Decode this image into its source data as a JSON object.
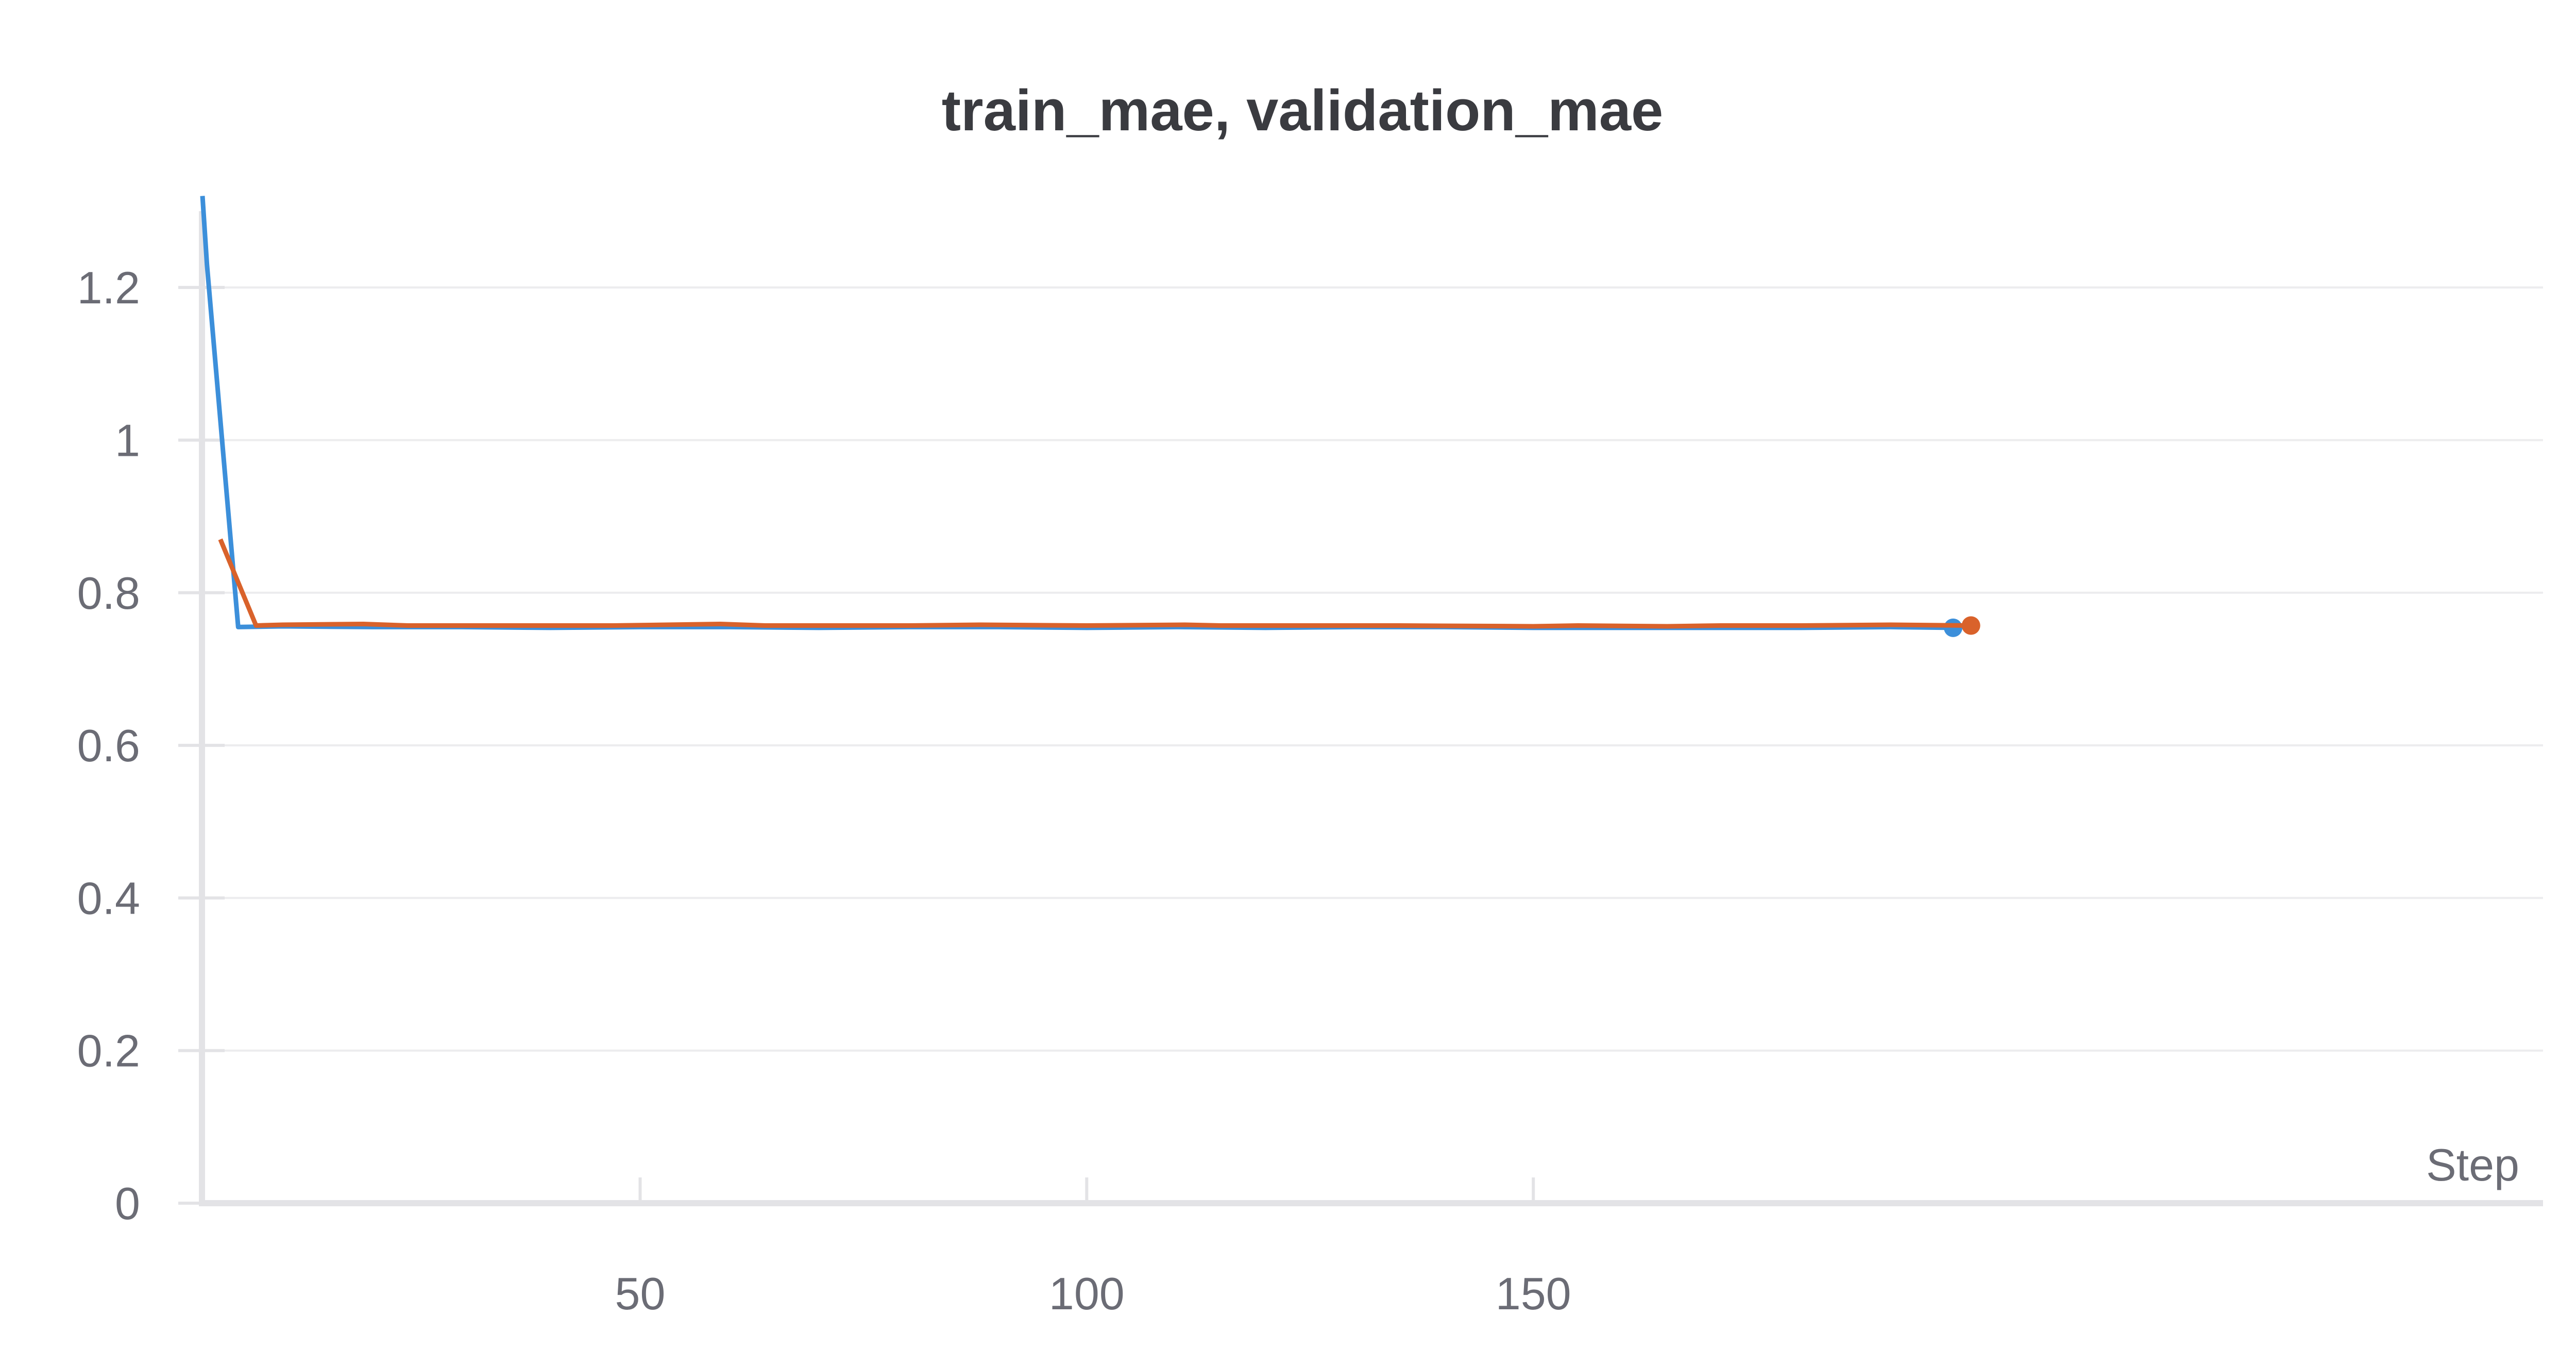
{
  "chart_data": {
    "type": "line",
    "title": "train_mae, validation_mae",
    "xlabel": "Step",
    "ylabel": "",
    "xlim": [
      1,
      199
    ],
    "ylim": [
      0,
      1.3
    ],
    "x_ticks": [
      50,
      100,
      150
    ],
    "y_ticks": [
      0,
      0.2,
      0.4,
      0.6,
      0.8,
      1,
      1.2
    ],
    "y_tick_labels": [
      "0",
      "0.2",
      "0.4",
      "0.6",
      "0.8",
      "1",
      "1.2"
    ],
    "grid": true,
    "series": [
      {
        "color": "#3c8fda",
        "points": [
          [
            1,
            1.32
          ],
          [
            1.5,
            1.23
          ],
          [
            5,
            0.755
          ],
          [
            10,
            0.756
          ],
          [
            20,
            0.755
          ],
          [
            30,
            0.755
          ],
          [
            40,
            0.754
          ],
          [
            50,
            0.755
          ],
          [
            60,
            0.755
          ],
          [
            70,
            0.754
          ],
          [
            80,
            0.755
          ],
          [
            90,
            0.755
          ],
          [
            100,
            0.754
          ],
          [
            110,
            0.755
          ],
          [
            120,
            0.754
          ],
          [
            130,
            0.755
          ],
          [
            140,
            0.755
          ],
          [
            150,
            0.754
          ],
          [
            160,
            0.754
          ],
          [
            170,
            0.754
          ],
          [
            180,
            0.754
          ],
          [
            190,
            0.755
          ],
          [
            197,
            0.754
          ]
        ]
      },
      {
        "color": "#d9622b",
        "points": [
          [
            3,
            0.87
          ],
          [
            7,
            0.757
          ],
          [
            10,
            0.758
          ],
          [
            19,
            0.759
          ],
          [
            24,
            0.757
          ],
          [
            30,
            0.757
          ],
          [
            40,
            0.757
          ],
          [
            47,
            0.757
          ],
          [
            59,
            0.759
          ],
          [
            64,
            0.757
          ],
          [
            72,
            0.757
          ],
          [
            80,
            0.757
          ],
          [
            88,
            0.758
          ],
          [
            100,
            0.757
          ],
          [
            111,
            0.758
          ],
          [
            115,
            0.757
          ],
          [
            125,
            0.757
          ],
          [
            135,
            0.757
          ],
          [
            150,
            0.756
          ],
          [
            155,
            0.757
          ],
          [
            165,
            0.756
          ],
          [
            171,
            0.757
          ],
          [
            180,
            0.757
          ],
          [
            190,
            0.758
          ],
          [
            199,
            0.757
          ]
        ]
      }
    ]
  }
}
